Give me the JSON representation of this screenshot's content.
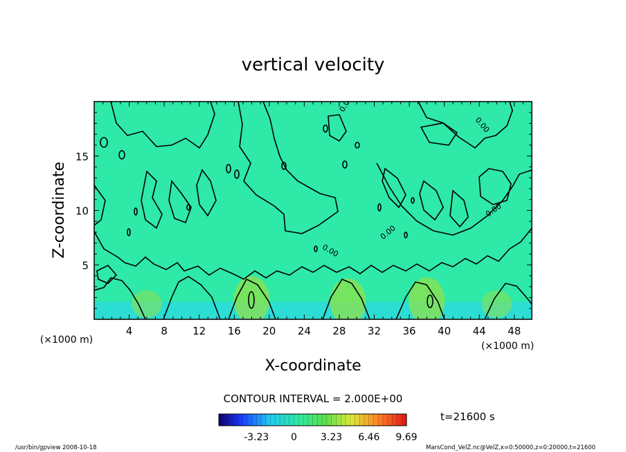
{
  "chart_data": {
    "type": "heatmap",
    "title": "vertical velocity",
    "xlabel": "X-coordinate",
    "ylabel": "Z-coordinate",
    "x_unit": "(×1000 m)",
    "y_unit": "(×1000 m)",
    "xlim": [
      0,
      50
    ],
    "ylim": [
      0,
      20
    ],
    "x_ticks": [
      4,
      8,
      12,
      16,
      20,
      24,
      28,
      32,
      36,
      40,
      44,
      48
    ],
    "y_ticks": [
      5,
      10,
      15
    ],
    "contour_interval_text": "CONTOUR INTERVAL = 2.000E+00",
    "contour_label": "0.00",
    "time_text": "t=21600 s",
    "colorbar": {
      "range": [
        -6.46,
        9.69
      ],
      "ticks": [
        -3.23,
        0,
        3.23,
        6.46,
        9.69
      ],
      "tick_labels": [
        "-3.23",
        "0",
        "3.23",
        "6.46",
        "9.69"
      ]
    },
    "updrafts": [
      {
        "x": 18,
        "z": 1.8
      },
      {
        "x": 29,
        "z": 1.6
      },
      {
        "x": 38,
        "z": 1.7
      }
    ]
  },
  "footer": {
    "left": "/usr/bin/gpview  2008-10-18",
    "right": "MarsCond_VelZ.nc@VelZ,x=0:50000,z=0:20000,t=21600"
  },
  "colors": {
    "field": "#2ee9a8",
    "low": "#2bd6f2",
    "high": "#8fe04a",
    "contour": "#000000"
  }
}
